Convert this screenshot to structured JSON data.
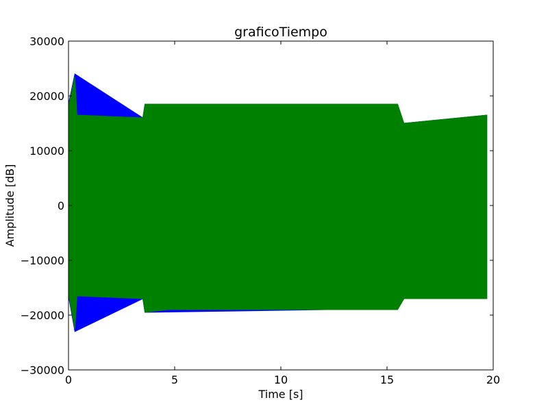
{
  "chart_data": {
    "type": "area",
    "title": "graficoTiempo",
    "xlabel": "Time [s]",
    "ylabel": "Amplitude [dB]",
    "xlim": [
      0,
      20
    ],
    "ylim": [
      -30000,
      30000
    ],
    "xticks": [
      0,
      5,
      10,
      15,
      20
    ],
    "xtick_labels": [
      "0",
      "5",
      "10",
      "15",
      "20"
    ],
    "yticks": [
      -30000,
      -20000,
      -10000,
      0,
      10000,
      20000,
      30000
    ],
    "ytick_labels": [
      "−30000",
      "−20000",
      "−10000",
      "0",
      "10000",
      "20000",
      "30000"
    ],
    "grid": false,
    "legend": "none",
    "series": [
      {
        "color": "#0000ff",
        "envelope": [
          {
            "x": 0.0,
            "max": 18500,
            "min": -16500
          },
          {
            "x": 0.3,
            "max": 24000,
            "min": -23000
          },
          {
            "x": 3.5,
            "max": 16000,
            "min": -17000
          },
          {
            "x": 3.6,
            "max": 18500,
            "min": -19500
          },
          {
            "x": 12.2,
            "max": 18500,
            "min": -19000
          },
          {
            "x": 15.8,
            "max": 15000,
            "min": -17000
          },
          {
            "x": 19.7,
            "max": 16500,
            "min": -17000
          }
        ]
      },
      {
        "color": "#008000",
        "envelope": [
          {
            "x": 0.0,
            "max": 18000,
            "min": -16000
          },
          {
            "x": 0.3,
            "max": 23500,
            "min": -22500
          },
          {
            "x": 0.4,
            "max": 16500,
            "min": -16500
          },
          {
            "x": 3.5,
            "max": 16000,
            "min": -17000
          },
          {
            "x": 3.6,
            "max": 18500,
            "min": -19500
          },
          {
            "x": 4.7,
            "max": 18500,
            "min": -19000
          },
          {
            "x": 8.0,
            "max": 18500,
            "min": -19000
          },
          {
            "x": 12.0,
            "max": 18500,
            "min": -19000
          },
          {
            "x": 12.5,
            "max": 18500,
            "min": -19000
          },
          {
            "x": 15.5,
            "max": 18500,
            "min": -19000
          },
          {
            "x": 15.8,
            "max": 15000,
            "min": -17000
          },
          {
            "x": 19.7,
            "max": 16500,
            "min": -17000
          }
        ]
      }
    ]
  }
}
